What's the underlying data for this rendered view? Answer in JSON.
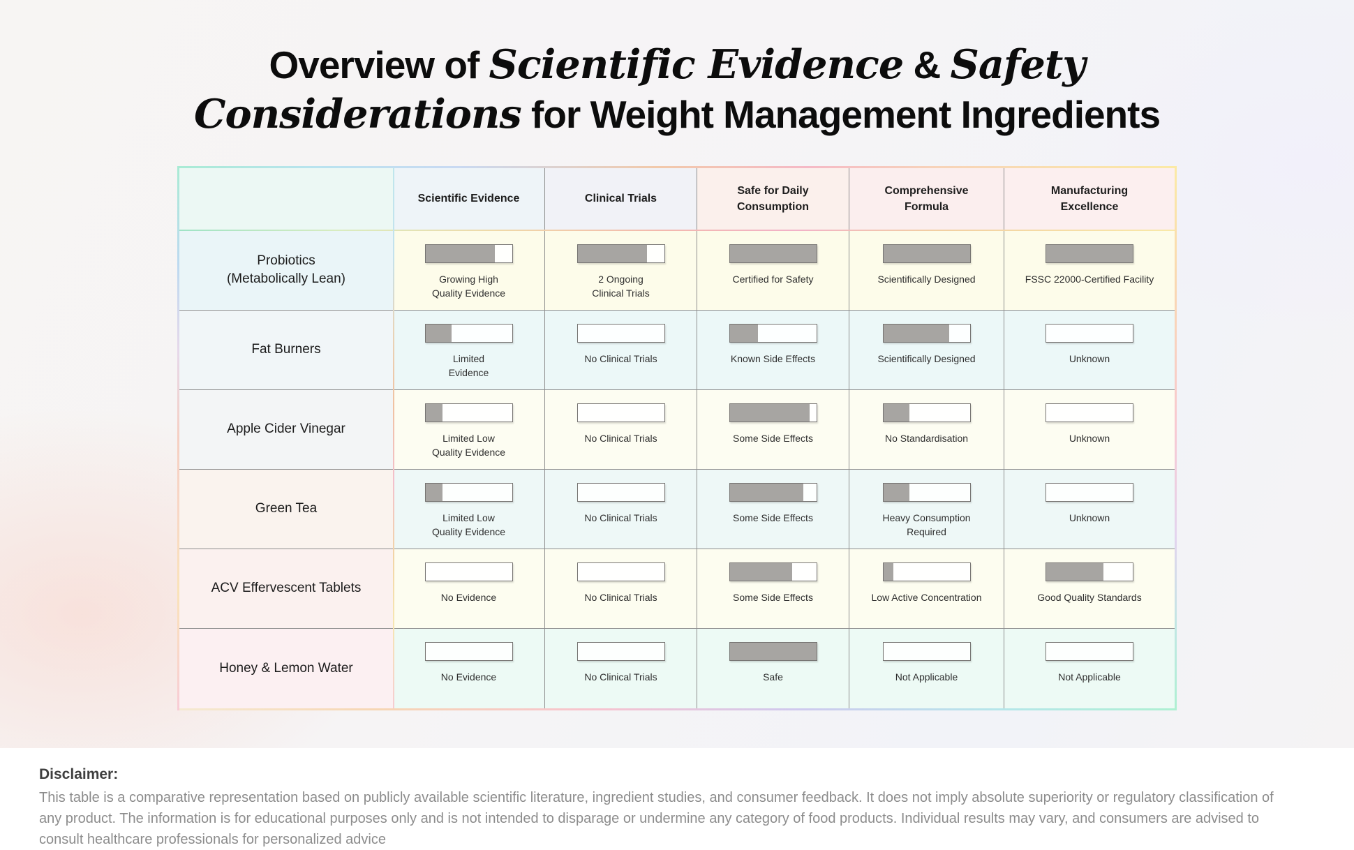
{
  "title": {
    "plain": "Overview of Scientific Evidence & Safety Considerations for Weight Management Ingredients",
    "lines": [
      {
        "parts": [
          {
            "t": "Overview of ",
            "s": "sans"
          },
          {
            "t": "Scientific Evidence",
            "s": "serif"
          },
          {
            "t": " & ",
            "s": "sans"
          },
          {
            "t": "Safety",
            "s": "serif"
          }
        ]
      },
      {
        "parts": [
          {
            "t": "Considerations",
            "s": "serif"
          },
          {
            "t": " for Weight Management Ingredients",
            "s": "sans"
          }
        ]
      }
    ]
  },
  "chart_data": {
    "type": "table",
    "title": "Overview of Scientific Evidence & Safety Considerations for Weight Management Ingredients",
    "value_scale": "fraction of rating bar filled, 0 to 1",
    "columns": [
      "Scientific Evidence",
      "Clinical Trials",
      "Safe for Daily Consumption",
      "Comprehensive Formula",
      "Manufacturing Excellence"
    ],
    "rows": [
      {
        "name": "Probiotics\n(Metabolically Lean)",
        "label_bg": "#eaf5f8",
        "cell_bg": "#fdfcea",
        "cells": [
          {
            "value": 0.8,
            "label": "Growing High\nQuality Evidence"
          },
          {
            "value": 0.8,
            "label": "2 Ongoing\nClinical Trials"
          },
          {
            "value": 1.0,
            "label": "Certified for Safety"
          },
          {
            "value": 1.0,
            "label": "Scientifically Designed"
          },
          {
            "value": 1.0,
            "label": "FSSC 22000-Certified Facility"
          }
        ]
      },
      {
        "name": "Fat Burners",
        "label_bg": "#f1f6f8",
        "cell_bg": "#ecf8f8",
        "cells": [
          {
            "value": 0.3,
            "label": "Limited\nEvidence"
          },
          {
            "value": 0.0,
            "label": "No Clinical Trials"
          },
          {
            "value": 0.33,
            "label": "Known Side Effects"
          },
          {
            "value": 0.76,
            "label": "Scientifically Designed"
          },
          {
            "value": 0.0,
            "label": "Unknown"
          }
        ]
      },
      {
        "name": "Apple Cider Vinegar",
        "label_bg": "#f3f5f6",
        "cell_bg": "#fdfdf2",
        "cells": [
          {
            "value": 0.2,
            "label": "Limited Low\nQuality Evidence"
          },
          {
            "value": 0.0,
            "label": "No Clinical Trials"
          },
          {
            "value": 0.92,
            "label": "Some Side Effects"
          },
          {
            "value": 0.3,
            "label": "No Standardisation"
          },
          {
            "value": 0.0,
            "label": "Unknown"
          }
        ]
      },
      {
        "name": "Green Tea",
        "label_bg": "#faf3ee",
        "cell_bg": "#eef8f7",
        "cells": [
          {
            "value": 0.2,
            "label": "Limited Low\nQuality Evidence"
          },
          {
            "value": 0.0,
            "label": "No Clinical Trials"
          },
          {
            "value": 0.85,
            "label": "Some Side Effects"
          },
          {
            "value": 0.3,
            "label": "Heavy Consumption\nRequired"
          },
          {
            "value": 0.0,
            "label": "Unknown"
          }
        ]
      },
      {
        "name": "ACV Effervescent Tablets",
        "label_bg": "#fbf1ef",
        "cell_bg": "#fdfdf0",
        "cells": [
          {
            "value": 0.0,
            "label": "No Evidence"
          },
          {
            "value": 0.0,
            "label": "No Clinical Trials"
          },
          {
            "value": 0.72,
            "label": "Some Side Effects"
          },
          {
            "value": 0.12,
            "label": "Low Active Concentration"
          },
          {
            "value": 0.66,
            "label": "Good Quality Standards"
          }
        ]
      },
      {
        "name": "Honey & Lemon Water",
        "label_bg": "#fcf0f2",
        "cell_bg": "#edfaf5",
        "cells": [
          {
            "value": 0.0,
            "label": "No Evidence"
          },
          {
            "value": 0.0,
            "label": "No Clinical Trials"
          },
          {
            "value": 1.0,
            "label": "Safe"
          },
          {
            "value": 0.0,
            "label": "Not Applicable"
          },
          {
            "value": 0.0,
            "label": "Not Applicable"
          }
        ]
      }
    ]
  },
  "style": {
    "header_bgs": {
      "corner": "#ecf8f4",
      "cells": [
        "#eef4f8",
        "#f1f2f7",
        "#fbf0ec",
        "#fbeeee",
        "#fcefef"
      ]
    },
    "bar_fill_color": "#a7a5a2",
    "bar_border_color": "#767472"
  },
  "disclaimer": {
    "heading": "Disclaimer:",
    "body": "This table is a comparative representation based on publicly available scientific literature, ingredient studies, and consumer feedback. It does not imply absolute superiority or regulatory classification of any product. The information is for educational purposes only and is not intended to disparage or undermine any category of food products. Individual results may vary, and consumers are advised to consult healthcare professionals for personalized advice"
  }
}
